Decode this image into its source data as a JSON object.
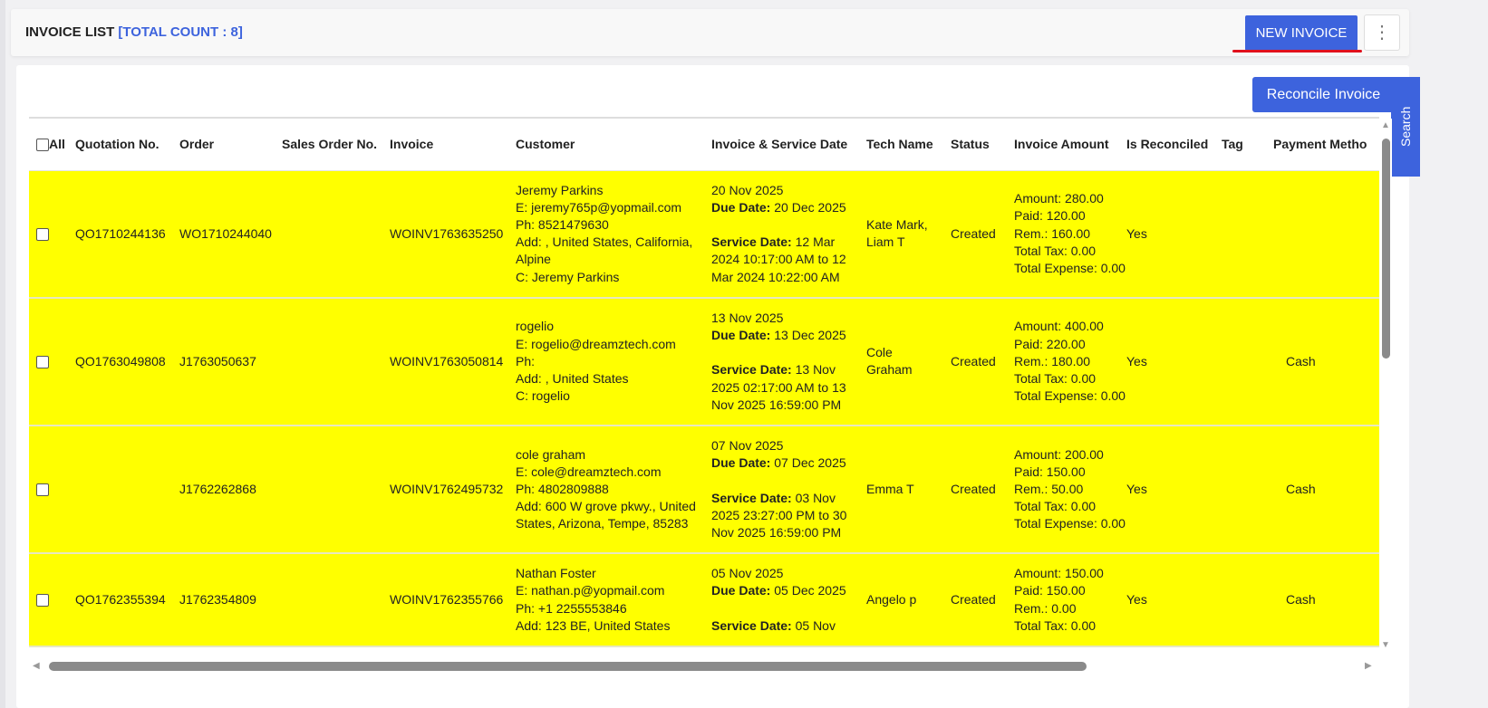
{
  "header": {
    "title": "INVOICE LIST",
    "count_label": "[TOTAL COUNT : 8]",
    "new_invoice": "NEW INVOICE",
    "more_icon": "more-vertical-icon"
  },
  "actions": {
    "reconcile": "Reconcile Invoice",
    "search_tab": "Search"
  },
  "table": {
    "columns": [
      "All",
      "Quotation No.",
      "Order",
      "Sales Order No.",
      "Invoice",
      "Customer",
      "Invoice & Service Date",
      "Tech Name",
      "Status",
      "Invoice Amount",
      "Is Reconciled",
      "Tag",
      "Payment Metho"
    ],
    "row_color": "#ffff00",
    "rows": [
      {
        "quotation": "QO1710244136",
        "order": "WO1710244040",
        "sales_order": "",
        "invoice": "WOINV1763635250",
        "customer": [
          "Jeremy Parkins",
          "E: jeremy765p@yopmail.com",
          "Ph: 8521479630",
          "Add: , United States, California, Alpine",
          "C: Jeremy Parkins"
        ],
        "invoice_date": "20 Nov 2025",
        "due_label": "Due Date:",
        "due_date": "20 Dec 2025",
        "service_label": "Service Date:",
        "service_date": "12 Mar 2024 10:17:00 AM to 12 Mar 2024 10:22:00 AM",
        "tech": "Kate Mark, Liam T",
        "status": "Created",
        "amount": [
          "Amount: 280.00",
          "Paid: 120.00",
          "Rem.: 160.00",
          "Total Tax: 0.00",
          "Total Expense: 0.00"
        ],
        "reconciled": "Yes",
        "tag": "",
        "payment": ""
      },
      {
        "quotation": "QO1763049808",
        "order": "J1763050637",
        "sales_order": "",
        "invoice": "WOINV1763050814",
        "customer": [
          "rogelio",
          "E: rogelio@dreamztech.com",
          "Ph:",
          "Add: , United States",
          "C: rogelio"
        ],
        "invoice_date": "13 Nov 2025",
        "due_label": "Due Date:",
        "due_date": "13 Dec 2025",
        "service_label": "Service Date:",
        "service_date": "13 Nov 2025 02:17:00 AM to 13 Nov 2025 16:59:00 PM",
        "tech": "Cole Graham",
        "status": "Created",
        "amount": [
          "Amount: 400.00",
          "Paid: 220.00",
          "Rem.: 180.00",
          "Total Tax: 0.00",
          "Total Expense: 0.00"
        ],
        "reconciled": "Yes",
        "tag": "",
        "payment": "Cash"
      },
      {
        "quotation": "",
        "order": "J1762262868",
        "sales_order": "",
        "invoice": "WOINV1762495732",
        "customer": [
          "cole graham",
          "E: cole@dreamztech.com",
          "Ph: 4802809888",
          "Add: 600 W grove pkwy., United States, Arizona, Tempe, 85283"
        ],
        "invoice_date": "07 Nov 2025",
        "due_label": "Due Date:",
        "due_date": "07 Dec 2025",
        "service_label": "Service Date:",
        "service_date": "03 Nov 2025 23:27:00 PM to 30 Nov 2025 16:59:00 PM",
        "tech": "Emma T",
        "status": "Created",
        "amount": [
          "Amount: 200.00",
          "Paid: 150.00",
          "Rem.: 50.00",
          "Total Tax: 0.00",
          "Total Expense: 0.00"
        ],
        "reconciled": "Yes",
        "tag": "",
        "payment": "Cash"
      },
      {
        "quotation": "QO1762355394",
        "order": "J1762354809",
        "sales_order": "",
        "invoice": "WOINV1762355766",
        "customer": [
          "Nathan Foster",
          "E: nathan.p@yopmail.com",
          "Ph: +1 2255553846",
          "Add: 123 BE, United States"
        ],
        "invoice_date": "05 Nov 2025",
        "due_label": "Due Date:",
        "due_date": "05 Dec 2025",
        "service_label": "Service Date:",
        "service_date": "05 Nov",
        "tech": "Angelo p",
        "status": "Created",
        "amount": [
          "Amount: 150.00",
          "Paid: 150.00",
          "Rem.: 0.00",
          "Total Tax: 0.00"
        ],
        "reconciled": "Yes",
        "tag": "",
        "payment": "Cash"
      }
    ]
  }
}
